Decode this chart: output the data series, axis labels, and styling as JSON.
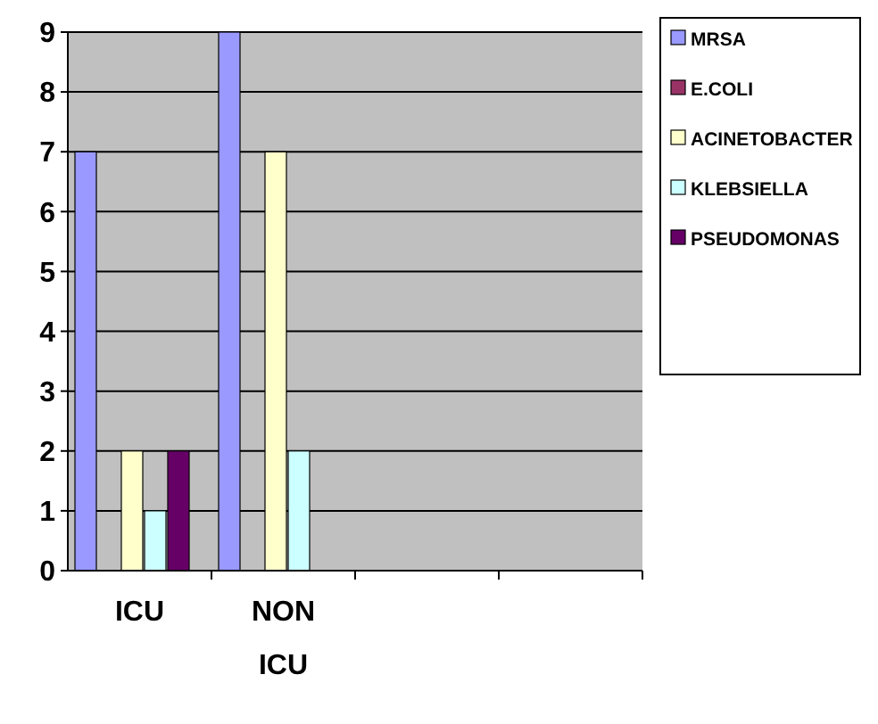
{
  "chart_data": {
    "type": "bar",
    "categories": [
      "ICU",
      "NON ICU",
      null,
      null
    ],
    "series": [
      {
        "name": "MRSA",
        "color": "#9999ff",
        "values": [
          7,
          9,
          null,
          null
        ]
      },
      {
        "name": "E.COLI",
        "color": "#993366",
        "values": [
          0,
          0,
          null,
          null
        ]
      },
      {
        "name": "ACINETOBACTER",
        "color": "#ffffcc",
        "values": [
          2,
          7,
          null,
          null
        ]
      },
      {
        "name": "KLEBSIELLA",
        "color": "#ccffff",
        "values": [
          1,
          2,
          null,
          null
        ]
      },
      {
        "name": "PSEUDOMONAS",
        "color": "#660066",
        "values": [
          2,
          0,
          null,
          null
        ]
      }
    ],
    "ylim": [
      0,
      9
    ],
    "yticks": [
      0,
      1,
      2,
      3,
      4,
      5,
      6,
      7,
      8,
      9
    ],
    "grid": "y",
    "legend": "top right"
  }
}
